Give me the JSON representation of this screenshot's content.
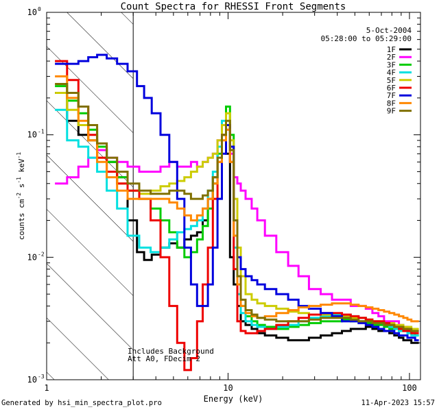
{
  "chart_data": {
    "type": "line",
    "title": "Count Spectra for RHESSI Front Segments",
    "xlabel": "Energy (keV)",
    "ylabel": "counts cm^-2 s^-1 keV^-1",
    "xscale": "log",
    "yscale": "log",
    "xlim": [
      1,
      115
    ],
    "ylim": [
      0.001,
      1
    ],
    "xticks": [
      {
        "value": 1,
        "label": "1"
      },
      {
        "value": 10,
        "label": "10"
      },
      {
        "value": 100,
        "label": "100"
      }
    ],
    "yticks": [
      {
        "value": 0.001,
        "label": "10",
        "exp": "-3"
      },
      {
        "value": 0.01,
        "label": "10",
        "exp": "-2"
      },
      {
        "value": 0.1,
        "label": "10",
        "exp": "-1"
      },
      {
        "value": 1,
        "label": "10",
        "exp": "0"
      }
    ],
    "date": "5-Oct-2004",
    "time_range": "05:28:00 to 05:29:00",
    "shaded_region": {
      "from": 1,
      "to": 3,
      "style": "diagonal-hatch"
    },
    "annotations": [
      "Includes Background",
      "Att A0, FDecim 2"
    ],
    "series": [
      {
        "name": "1F",
        "color": "#000000",
        "x": [
          1.2,
          1.4,
          1.6,
          1.8,
          2.0,
          2.3,
          2.6,
          3.0,
          3.3,
          3.6,
          4.0,
          4.5,
          5.0,
          5.5,
          6.0,
          6.5,
          7.0,
          7.5,
          8.0,
          8.5,
          9.0,
          9.5,
          10.0,
          10.5,
          11.0,
          11.5,
          12.0,
          13,
          14,
          15,
          17,
          20,
          23,
          26,
          30,
          35,
          40,
          45,
          50,
          55,
          60,
          65,
          70,
          75,
          80,
          85,
          90,
          95,
          100,
          105,
          110
        ],
        "y": [
          0.22,
          0.13,
          0.1,
          0.09,
          0.075,
          0.06,
          0.045,
          0.02,
          0.011,
          0.0095,
          0.0105,
          0.012,
          0.013,
          0.012,
          0.014,
          0.015,
          0.016,
          0.02,
          0.03,
          0.045,
          0.08,
          0.1,
          0.07,
          0.01,
          0.006,
          0.004,
          0.003,
          0.0028,
          0.0026,
          0.0024,
          0.0023,
          0.0022,
          0.0021,
          0.0021,
          0.0022,
          0.0023,
          0.0024,
          0.0025,
          0.0026,
          0.0026,
          0.0027,
          0.0026,
          0.0025,
          0.0025,
          0.0024,
          0.0023,
          0.0022,
          0.0021,
          0.0021,
          0.002,
          0.002
        ]
      },
      {
        "name": "2F",
        "color": "#ff00ff",
        "x": [
          1.2,
          1.4,
          1.6,
          1.8,
          2.0,
          2.3,
          2.6,
          3.0,
          3.5,
          4.0,
          4.5,
          5.0,
          5.5,
          6.0,
          6.5,
          7.0,
          7.5,
          8.0,
          8.5,
          9.0,
          9.5,
          10.0,
          10.5,
          11.0,
          11.5,
          12.0,
          13,
          14,
          15,
          17,
          20,
          23,
          26,
          30,
          35,
          40,
          45,
          50,
          55,
          60,
          65,
          70,
          75,
          80,
          85,
          90,
          95,
          100,
          105,
          110
        ],
        "y": [
          0.04,
          0.045,
          0.055,
          0.065,
          0.075,
          0.065,
          0.06,
          0.055,
          0.05,
          0.05,
          0.055,
          0.06,
          0.055,
          0.055,
          0.06,
          0.055,
          0.06,
          0.065,
          0.07,
          0.09,
          0.12,
          0.11,
          0.07,
          0.045,
          0.04,
          0.035,
          0.03,
          0.025,
          0.02,
          0.015,
          0.011,
          0.0085,
          0.007,
          0.0055,
          0.005,
          0.0045,
          0.0045,
          0.004,
          0.004,
          0.0038,
          0.0035,
          0.0033,
          0.003,
          0.003,
          0.003,
          0.0028,
          0.0027,
          0.0026,
          0.0025,
          0.0025
        ]
      },
      {
        "name": "3F",
        "color": "#00cc00",
        "x": [
          1.2,
          1.4,
          1.6,
          1.8,
          2.0,
          2.3,
          2.6,
          3.0,
          3.5,
          4.0,
          4.5,
          5.0,
          5.5,
          6.0,
          6.5,
          7.0,
          7.5,
          8.0,
          8.5,
          9.0,
          9.5,
          10.0,
          10.5,
          11.0,
          11.5,
          12.0,
          13,
          14,
          15,
          17,
          20,
          23,
          26,
          30,
          35,
          40,
          45,
          50,
          55,
          60,
          65,
          70,
          75,
          80,
          85,
          90,
          95,
          100,
          105,
          110
        ],
        "y": [
          0.25,
          0.19,
          0.15,
          0.11,
          0.08,
          0.06,
          0.045,
          0.035,
          0.03,
          0.025,
          0.02,
          0.016,
          0.012,
          0.01,
          0.011,
          0.014,
          0.018,
          0.025,
          0.04,
          0.07,
          0.12,
          0.17,
          0.1,
          0.02,
          0.006,
          0.004,
          0.0033,
          0.003,
          0.0028,
          0.0027,
          0.0026,
          0.0027,
          0.0028,
          0.0029,
          0.003,
          0.003,
          0.0031,
          0.003,
          0.003,
          0.0029,
          0.0028,
          0.0028,
          0.0027,
          0.0026,
          0.0026,
          0.0025,
          0.0025,
          0.0024,
          0.0024,
          0.0023
        ]
      },
      {
        "name": "4F",
        "color": "#00e0e0",
        "x": [
          1.2,
          1.4,
          1.6,
          1.8,
          2.0,
          2.3,
          2.6,
          3.0,
          3.5,
          4.0,
          4.5,
          5.0,
          5.5,
          6.0,
          6.5,
          7.0,
          7.5,
          8.0,
          8.5,
          9.0,
          9.5,
          10.0,
          10.5,
          11.0,
          11.5,
          12.0,
          13,
          14,
          15,
          17,
          20,
          23,
          26,
          30,
          35,
          40,
          45,
          50,
          55,
          60,
          65,
          70,
          75,
          80,
          85,
          90,
          95,
          100,
          105,
          110
        ],
        "y": [
          0.16,
          0.09,
          0.08,
          0.065,
          0.05,
          0.035,
          0.025,
          0.015,
          0.012,
          0.011,
          0.012,
          0.014,
          0.016,
          0.017,
          0.018,
          0.02,
          0.025,
          0.035,
          0.05,
          0.08,
          0.13,
          0.12,
          0.06,
          0.012,
          0.005,
          0.0035,
          0.003,
          0.0028,
          0.0027,
          0.0026,
          0.0027,
          0.0028,
          0.003,
          0.0032,
          0.0033,
          0.0034,
          0.0034,
          0.0033,
          0.0032,
          0.0031,
          0.003,
          0.0029,
          0.0028,
          0.0027,
          0.0026,
          0.0025,
          0.0025,
          0.0024,
          0.0023,
          0.0023
        ]
      },
      {
        "name": "5F",
        "color": "#cccc00",
        "x": [
          1.2,
          1.4,
          1.6,
          1.8,
          2.0,
          2.3,
          2.6,
          3.0,
          3.5,
          4.0,
          4.5,
          5.0,
          5.5,
          6.0,
          6.5,
          7.0,
          7.5,
          8.0,
          8.5,
          9.0,
          9.5,
          10.0,
          10.5,
          11.0,
          11.5,
          12.0,
          13,
          14,
          15,
          17,
          20,
          23,
          26,
          30,
          35,
          40,
          45,
          50,
          55,
          60,
          65,
          70,
          75,
          80,
          85,
          90,
          95,
          100,
          105,
          110
        ],
        "y": [
          0.22,
          0.16,
          0.12,
          0.09,
          0.065,
          0.05,
          0.04,
          0.035,
          0.033,
          0.035,
          0.038,
          0.04,
          0.042,
          0.045,
          0.05,
          0.055,
          0.06,
          0.065,
          0.07,
          0.09,
          0.12,
          0.15,
          0.09,
          0.03,
          0.012,
          0.007,
          0.005,
          0.0045,
          0.0042,
          0.004,
          0.0038,
          0.0036,
          0.0035,
          0.0034,
          0.0034,
          0.0033,
          0.0033,
          0.0032,
          0.0032,
          0.0031,
          0.003,
          0.003,
          0.0029,
          0.0029,
          0.0028,
          0.0028,
          0.0027,
          0.0027,
          0.0026,
          0.0026
        ]
      },
      {
        "name": "6F",
        "color": "#ee0000",
        "x": [
          1.2,
          1.4,
          1.6,
          1.8,
          2.0,
          2.3,
          2.6,
          3.0,
          3.5,
          4.0,
          4.5,
          5.0,
          5.5,
          6.0,
          6.5,
          7.0,
          7.5,
          8.0,
          8.5,
          9.0,
          9.5,
          10.0,
          10.5,
          11.0,
          11.5,
          12.0,
          13,
          14,
          15,
          17,
          20,
          23,
          26,
          30,
          35,
          40,
          45,
          50,
          55,
          60,
          65,
          70,
          75,
          80,
          85,
          90,
          95,
          100,
          105,
          110
        ],
        "y": [
          0.4,
          0.28,
          0.17,
          0.1,
          0.065,
          0.05,
          0.04,
          0.035,
          0.03,
          0.02,
          0.01,
          0.004,
          0.002,
          0.0012,
          0.0015,
          0.003,
          0.006,
          0.012,
          0.03,
          0.06,
          0.1,
          0.12,
          0.06,
          0.008,
          0.003,
          0.0025,
          0.0024,
          0.0024,
          0.0025,
          0.0026,
          0.0028,
          0.003,
          0.0032,
          0.0034,
          0.0035,
          0.0035,
          0.0034,
          0.0033,
          0.0032,
          0.0031,
          0.003,
          0.003,
          0.0029,
          0.0028,
          0.0027,
          0.0026,
          0.0025,
          0.0025,
          0.0024,
          0.0024
        ]
      },
      {
        "name": "7F",
        "color": "#0000dd",
        "x": [
          1.2,
          1.4,
          1.6,
          1.8,
          2.0,
          2.3,
          2.6,
          3.0,
          3.3,
          3.6,
          4.0,
          4.5,
          5.0,
          5.5,
          6.0,
          6.5,
          7.0,
          7.5,
          8.0,
          8.5,
          9.0,
          9.5,
          10.0,
          10.5,
          11.0,
          11.5,
          12.0,
          13,
          14,
          15,
          17,
          20,
          23,
          26,
          30,
          35,
          40,
          45,
          50,
          55,
          60,
          65,
          70,
          75,
          80,
          85,
          90,
          95,
          100,
          105,
          110
        ],
        "y": [
          0.38,
          0.38,
          0.4,
          0.43,
          0.45,
          0.42,
          0.38,
          0.33,
          0.25,
          0.2,
          0.15,
          0.1,
          0.06,
          0.03,
          0.012,
          0.006,
          0.004,
          0.004,
          0.006,
          0.012,
          0.03,
          0.07,
          0.12,
          0.08,
          0.02,
          0.01,
          0.008,
          0.007,
          0.0065,
          0.006,
          0.0055,
          0.005,
          0.0045,
          0.004,
          0.0038,
          0.0035,
          0.0033,
          0.003,
          0.003,
          0.0029,
          0.0028,
          0.0027,
          0.0026,
          0.0025,
          0.0025,
          0.0024,
          0.0023,
          0.0023,
          0.0022,
          0.0022,
          0.0021
        ]
      },
      {
        "name": "8F",
        "color": "#ff8800",
        "x": [
          1.2,
          1.4,
          1.6,
          1.8,
          2.0,
          2.3,
          2.6,
          3.0,
          3.5,
          4.0,
          4.5,
          5.0,
          5.5,
          6.0,
          6.5,
          7.0,
          7.5,
          8.0,
          8.5,
          9.0,
          9.5,
          10.0,
          10.5,
          11.0,
          11.5,
          12.0,
          13,
          14,
          15,
          17,
          20,
          23,
          26,
          30,
          35,
          40,
          45,
          50,
          55,
          60,
          65,
          70,
          75,
          80,
          85,
          90,
          95,
          100,
          105,
          110
        ],
        "y": [
          0.3,
          0.2,
          0.13,
          0.09,
          0.06,
          0.045,
          0.035,
          0.03,
          0.03,
          0.03,
          0.03,
          0.028,
          0.025,
          0.022,
          0.02,
          0.022,
          0.025,
          0.03,
          0.04,
          0.06,
          0.09,
          0.11,
          0.06,
          0.015,
          0.006,
          0.004,
          0.0035,
          0.0033,
          0.0032,
          0.0033,
          0.0035,
          0.0037,
          0.0039,
          0.004,
          0.0041,
          0.0042,
          0.0042,
          0.0041,
          0.004,
          0.0039,
          0.0038,
          0.0037,
          0.0036,
          0.0035,
          0.0034,
          0.0033,
          0.0032,
          0.0031,
          0.003,
          0.003
        ]
      },
      {
        "name": "9F",
        "color": "#807000",
        "x": [
          1.2,
          1.4,
          1.6,
          1.8,
          2.0,
          2.3,
          2.6,
          3.0,
          3.5,
          4.0,
          4.5,
          5.0,
          5.5,
          6.0,
          6.5,
          7.0,
          7.5,
          8.0,
          8.5,
          9.0,
          9.5,
          10.0,
          10.5,
          11.0,
          11.5,
          12.0,
          13,
          14,
          15,
          17,
          20,
          23,
          26,
          30,
          35,
          40,
          45,
          50,
          55,
          60,
          65,
          70,
          75,
          80,
          85,
          90,
          95,
          100,
          105,
          110
        ],
        "y": [
          0.26,
          0.22,
          0.17,
          0.12,
          0.085,
          0.065,
          0.05,
          0.04,
          0.035,
          0.033,
          0.033,
          0.035,
          0.035,
          0.033,
          0.03,
          0.03,
          0.032,
          0.035,
          0.045,
          0.065,
          0.1,
          0.13,
          0.075,
          0.02,
          0.007,
          0.0045,
          0.0037,
          0.0034,
          0.0032,
          0.0031,
          0.003,
          0.003,
          0.003,
          0.0031,
          0.0032,
          0.0032,
          0.0032,
          0.0031,
          0.003,
          0.003,
          0.0029,
          0.0029,
          0.0028,
          0.0028,
          0.0027,
          0.0027,
          0.0026,
          0.0026,
          0.0025,
          0.0025
        ]
      }
    ]
  },
  "footer": {
    "left": "Generated by hsi_min_spectra_plot.pro",
    "right": "11-Apr-2023 15:57"
  }
}
